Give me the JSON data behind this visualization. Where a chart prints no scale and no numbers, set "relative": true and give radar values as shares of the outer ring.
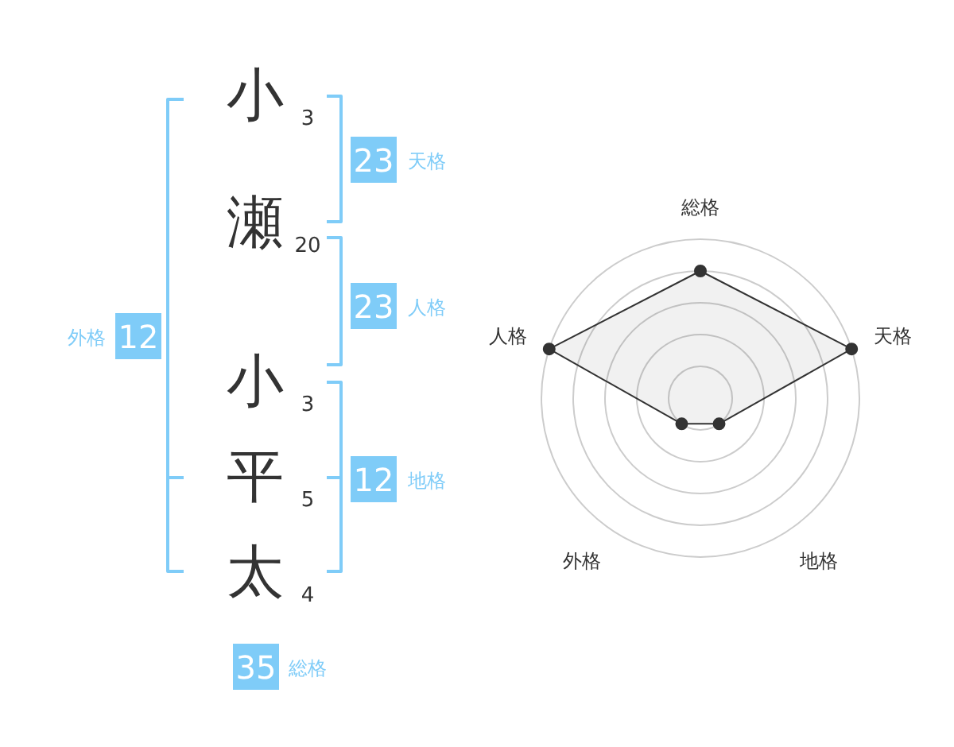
{
  "chart_data": [
    {
      "type": "other",
      "categories": [
        "小",
        "瀬",
        "小",
        "平",
        "太"
      ],
      "values": [
        3,
        20,
        3,
        5,
        4
      ],
      "data_labels": true,
      "annotations": [
        "23",
        "天格",
        "23",
        "人格",
        "12",
        "地格",
        "12",
        "外格",
        "35",
        "総格"
      ]
    },
    {
      "type": "radar",
      "categories": [
        "総格",
        "天格",
        "地格",
        "外格",
        "人格"
      ],
      "relative": true,
      "grid": true,
      "marker": "circle",
      "series": [
        {
          "color": "#333333",
          "values": [
            0.8,
            1,
            0.2,
            0.2,
            1
          ]
        }
      ]
    }
  ]
}
